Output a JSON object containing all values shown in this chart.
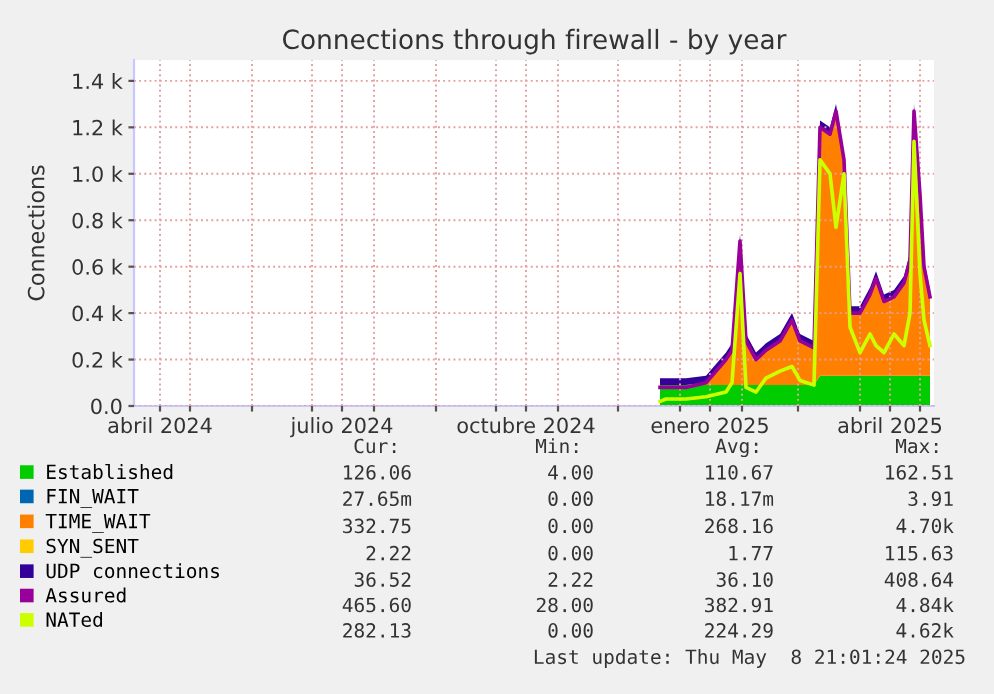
{
  "chart_data": {
    "type": "area",
    "title": "Connections through firewall - by year",
    "ylabel": "Connections",
    "stacked": true,
    "grid": true,
    "legend": "bottom left",
    "x": [
      "2024-12-22",
      "2024-12-25",
      "2025-01-04",
      "2025-01-14",
      "2025-01-24",
      "2025-01-27",
      "2025-01-31",
      "2025-02-03",
      "2025-02-08",
      "2025-02-13",
      "2025-02-20",
      "2025-02-26",
      "2025-03-02",
      "2025-03-09",
      "2025-03-12",
      "2025-03-17",
      "2025-03-20",
      "2025-03-24",
      "2025-03-27",
      "2025-04-01",
      "2025-04-06",
      "2025-04-09",
      "2025-04-13",
      "2025-04-18",
      "2025-04-23",
      "2025-04-26",
      "2025-04-28",
      "2025-05-01",
      "2025-05-03",
      "2025-05-06"
    ],
    "xlim": [
      "2024-04-03",
      "2025-05-08"
    ],
    "xticks": [
      {
        "value": "2024-04-16",
        "label": "abril 2024"
      },
      {
        "value": "2024-07-16",
        "label": "julio 2024"
      },
      {
        "value": "2024-10-16",
        "label": "octubre 2024"
      },
      {
        "value": "2025-01-16",
        "label": "enero 2025"
      },
      {
        "value": "2025-04-16",
        "label": "abril 2025"
      },
      {
        "value": "2024-05-01",
        "label": null
      },
      {
        "value": "2024-06-01",
        "label": null
      },
      {
        "value": "2024-07-01",
        "label": null
      },
      {
        "value": "2024-08-01",
        "label": null
      },
      {
        "value": "2024-09-01",
        "label": null
      },
      {
        "value": "2024-10-01",
        "label": null
      },
      {
        "value": "2024-11-01",
        "label": null
      },
      {
        "value": "2024-12-01",
        "label": null
      },
      {
        "value": "2025-01-01",
        "label": null
      },
      {
        "value": "2025-02-01",
        "label": null
      },
      {
        "value": "2025-03-01",
        "label": null
      },
      {
        "value": "2025-04-01",
        "label": null
      },
      {
        "value": "2025-05-01",
        "label": null
      }
    ],
    "ylim": [
      0,
      1490
    ],
    "yticks": [
      {
        "value": 0,
        "label": "0.0"
      },
      {
        "value": 200,
        "label": "0.2 k"
      },
      {
        "value": 400,
        "label": "0.4 k"
      },
      {
        "value": 600,
        "label": "0.6 k"
      },
      {
        "value": 800,
        "label": "0.8 k"
      },
      {
        "value": 1000,
        "label": "1.0 k"
      },
      {
        "value": 1200,
        "label": "1.2 k"
      },
      {
        "value": 1400,
        "label": "1.4 k"
      }
    ],
    "series": [
      {
        "name": "Established",
        "color": "#00cc00",
        "values": [
          90,
          90,
          90,
          90,
          90,
          90,
          90,
          90,
          90,
          90,
          90,
          90,
          90,
          90,
          130,
          130,
          130,
          130,
          130,
          130,
          130,
          130,
          130,
          130,
          130,
          130,
          130,
          130,
          130,
          130
        ]
      },
      {
        "name": "FIN_WAIT",
        "color": "#0066b3",
        "values": [
          null,
          null,
          null,
          null,
          null,
          null,
          null,
          null,
          null,
          null,
          null,
          null,
          null,
          null,
          null,
          null,
          null,
          null,
          null,
          null,
          null,
          null,
          null,
          null,
          null,
          null,
          null,
          null,
          null,
          null
        ]
      },
      {
        "name": "TIME_WAIT",
        "color": "#ff8000",
        "values": [
          0,
          0,
          0,
          10,
          110,
          150,
          620,
          190,
          110,
          150,
          190,
          280,
          190,
          160,
          1070,
          1040,
          1140,
          930,
          270,
          270,
          350,
          420,
          320,
          340,
          400,
          500,
          1140,
          780,
          470,
          340
        ]
      },
      {
        "name": "SYN_SENT",
        "color": "#ffcc00",
        "values": [
          null,
          null,
          null,
          null,
          null,
          null,
          null,
          null,
          null,
          null,
          null,
          null,
          null,
          null,
          null,
          null,
          null,
          null,
          null,
          null,
          null,
          null,
          null,
          null,
          null,
          null,
          null,
          null,
          null,
          null
        ]
      },
      {
        "name": "UDP connections",
        "color": "#330099",
        "values": [
          30,
          30,
          30,
          30,
          30,
          30,
          30,
          30,
          30,
          30,
          30,
          30,
          30,
          30,
          30,
          30,
          30,
          30,
          30,
          30,
          30,
          30,
          30,
          30,
          30,
          30,
          30,
          30,
          30,
          30
        ]
      },
      {
        "name": "Assured",
        "type": "line",
        "color": "#990099",
        "values": [
          80,
          80,
          80,
          100,
          200,
          240,
          710,
          280,
          200,
          240,
          280,
          370,
          280,
          250,
          1200,
          1170,
          1270,
          1060,
          400,
          400,
          480,
          550,
          450,
          470,
          530,
          630,
          1270,
          910,
          600,
          470
        ]
      },
      {
        "name": "NATed",
        "type": "line",
        "color": "#ccff00",
        "values": [
          20,
          30,
          30,
          40,
          60,
          100,
          570,
          80,
          60,
          120,
          150,
          170,
          110,
          90,
          1060,
          1000,
          770,
          1000,
          340,
          230,
          310,
          260,
          230,
          310,
          260,
          400,
          1140,
          570,
          370,
          260
        ]
      }
    ],
    "annotations": [
      "Cur:",
      "Min:",
      "Avg:",
      "Max:",
      "126.06",
      "4.00",
      "110.67",
      "162.51",
      "27.65m",
      "0.00",
      "18.17m",
      "3.91",
      "332.75",
      "0.00",
      "268.16",
      "4.70k",
      "2.22",
      "0.00",
      "1.77",
      "115.63",
      "36.52",
      "2.22",
      "36.10",
      "408.64",
      "465.60",
      "28.00",
      "382.91",
      "4.84k",
      "282.13",
      "0.00",
      "224.29",
      "4.62k",
      "Last update: Thu May  8 21:01:24 2025"
    ]
  }
}
